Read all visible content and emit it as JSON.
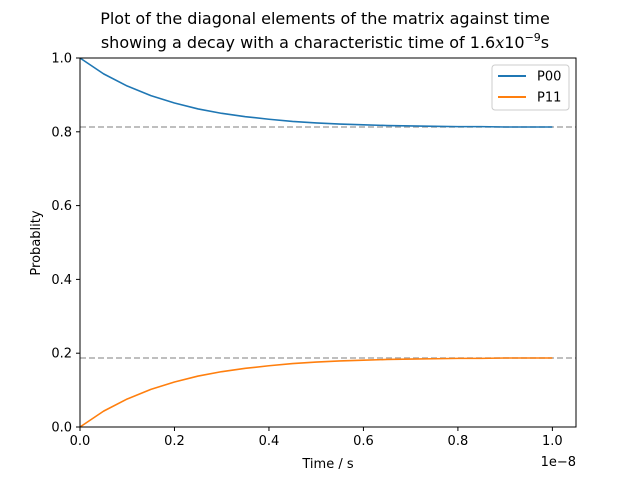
{
  "chart_data": {
    "type": "line",
    "title_line1": "Plot of the diagonal elements of the matrix against time",
    "title_line2_prefix": "showing a decay with a characteristic time of 1.6",
    "title_line2_italic": "x",
    "title_line2_base": "10",
    "title_line2_exp": "−9",
    "title_line2_suffix": "s",
    "xlabel": "Time / s",
    "ylabel": "Probablity",
    "x_offset_label": "1e−8",
    "xlim": [
      0.0,
      1.05
    ],
    "ylim": [
      0.0,
      1.0
    ],
    "xticks": [
      0.0,
      0.2,
      0.4,
      0.6,
      0.8,
      1.0
    ],
    "xtick_labels": [
      "0.0",
      "0.2",
      "0.4",
      "0.6",
      "0.8",
      "1.0"
    ],
    "yticks": [
      0.0,
      0.2,
      0.4,
      0.6,
      0.8,
      1.0
    ],
    "ytick_labels": [
      "0.0",
      "0.2",
      "0.4",
      "0.6",
      "0.8",
      "1.0"
    ],
    "grid": false,
    "legend_position": "upper right",
    "series": [
      {
        "name": "P00",
        "color": "#1f77b4",
        "x": [
          0.0,
          0.05,
          0.1,
          0.15,
          0.2,
          0.25,
          0.3,
          0.35,
          0.4,
          0.45,
          0.5,
          0.55,
          0.6,
          0.65,
          0.7,
          0.75,
          0.8,
          0.85,
          0.9,
          0.95,
          1.0
        ],
        "y": [
          1.0,
          0.957,
          0.924,
          0.898,
          0.878,
          0.862,
          0.85,
          0.841,
          0.834,
          0.828,
          0.824,
          0.821,
          0.819,
          0.817,
          0.816,
          0.815,
          0.814,
          0.814,
          0.813,
          0.813,
          0.813
        ]
      },
      {
        "name": "P11",
        "color": "#ff7f0e",
        "x": [
          0.0,
          0.05,
          0.1,
          0.15,
          0.2,
          0.25,
          0.3,
          0.35,
          0.4,
          0.45,
          0.5,
          0.55,
          0.6,
          0.65,
          0.7,
          0.75,
          0.8,
          0.85,
          0.9,
          0.95,
          1.0
        ],
        "y": [
          0.0,
          0.043,
          0.076,
          0.102,
          0.122,
          0.138,
          0.15,
          0.159,
          0.166,
          0.172,
          0.176,
          0.179,
          0.181,
          0.183,
          0.184,
          0.185,
          0.186,
          0.186,
          0.187,
          0.187,
          0.187
        ]
      }
    ],
    "reference_lines": [
      {
        "y": 0.813,
        "color": "#aaaaaa",
        "style": "dashed"
      },
      {
        "y": 0.187,
        "color": "#aaaaaa",
        "style": "dashed"
      }
    ]
  }
}
